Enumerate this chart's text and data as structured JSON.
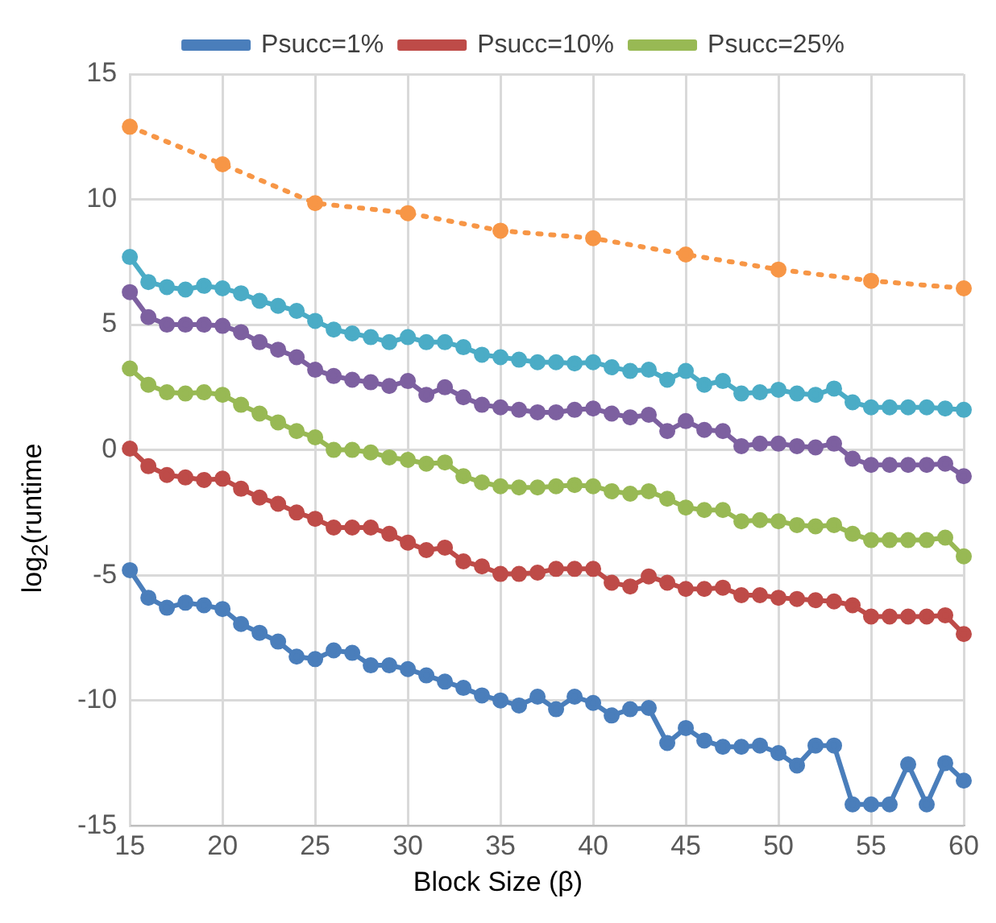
{
  "chart_data": {
    "type": "line",
    "xlabel": "Block Size (β)",
    "ylabel": "log$_{2}$(runtime",
    "x": [
      15,
      16,
      17,
      18,
      19,
      20,
      21,
      22,
      23,
      24,
      25,
      26,
      27,
      28,
      29,
      30,
      31,
      32,
      33,
      34,
      35,
      36,
      37,
      38,
      39,
      40,
      41,
      42,
      43,
      44,
      45,
      46,
      47,
      48,
      49,
      50,
      51,
      52,
      53,
      54,
      55,
      56,
      57,
      58,
      59,
      60
    ],
    "series": [
      {
        "name": "Psucc=1%",
        "color": "#4a7ebb",
        "values": [
          -4.8,
          -5.9,
          -6.3,
          -6.1,
          -6.2,
          -6.35,
          -6.95,
          -7.3,
          -7.65,
          -8.25,
          -8.35,
          -8.0,
          -8.1,
          -8.6,
          -8.6,
          -8.75,
          -9.0,
          -9.25,
          -9.5,
          -9.8,
          -10.0,
          -10.2,
          -9.85,
          -10.35,
          -9.85,
          -10.1,
          -10.6,
          -10.35,
          -10.3,
          -11.7,
          -11.1,
          -11.6,
          -11.85,
          -11.85,
          -11.8,
          -12.1,
          -12.6,
          -11.8,
          -11.8,
          -14.15,
          -14.15,
          -14.15,
          -12.55,
          -14.15,
          -12.5,
          -13.2
        ]
      },
      {
        "name": "Psucc=10%",
        "color": "#be4b48",
        "values": [
          0.05,
          -0.65,
          -1.0,
          -1.1,
          -1.2,
          -1.15,
          -1.55,
          -1.9,
          -2.15,
          -2.5,
          -2.75,
          -3.1,
          -3.1,
          -3.1,
          -3.35,
          -3.7,
          -4.0,
          -3.9,
          -4.45,
          -4.65,
          -4.95,
          -4.95,
          -4.9,
          -4.75,
          -4.75,
          -4.75,
          -5.3,
          -5.45,
          -5.05,
          -5.3,
          -5.55,
          -5.55,
          -5.5,
          -5.8,
          -5.8,
          -5.9,
          -5.95,
          -6.0,
          -6.05,
          -6.2,
          -6.65,
          -6.65,
          -6.65,
          -6.65,
          -6.6,
          -7.35
        ]
      },
      {
        "name": "Psucc=25%",
        "color": "#98b954",
        "values": [
          3.25,
          2.6,
          2.3,
          2.25,
          2.3,
          2.2,
          1.8,
          1.45,
          1.1,
          0.75,
          0.5,
          0.0,
          0.0,
          -0.1,
          -0.3,
          -0.4,
          -0.55,
          -0.5,
          -1.05,
          -1.3,
          -1.45,
          -1.5,
          -1.5,
          -1.45,
          -1.4,
          -1.45,
          -1.65,
          -1.75,
          -1.65,
          -1.95,
          -2.3,
          -2.4,
          -2.4,
          -2.85,
          -2.8,
          -2.85,
          -3.0,
          -3.05,
          -3.0,
          -3.35,
          -3.6,
          -3.6,
          -3.6,
          -3.6,
          -3.5,
          -4.25
        ]
      },
      {
        "color": "#7d60a0",
        "values": [
          6.3,
          5.3,
          5.0,
          5.0,
          5.0,
          4.95,
          4.7,
          4.3,
          4.0,
          3.7,
          3.2,
          2.95,
          2.8,
          2.7,
          2.55,
          2.75,
          2.2,
          2.5,
          2.1,
          1.8,
          1.7,
          1.6,
          1.5,
          1.5,
          1.6,
          1.65,
          1.45,
          1.3,
          1.4,
          0.75,
          1.15,
          0.8,
          0.75,
          0.15,
          0.25,
          0.25,
          0.15,
          0.1,
          0.25,
          -0.35,
          -0.6,
          -0.6,
          -0.6,
          -0.6,
          -0.55,
          -1.05
        ]
      },
      {
        "color": "#4bacc6",
        "values": [
          7.7,
          6.7,
          6.5,
          6.4,
          6.55,
          6.45,
          6.25,
          5.95,
          5.75,
          5.55,
          5.15,
          4.8,
          4.65,
          4.5,
          4.3,
          4.5,
          4.3,
          4.3,
          4.1,
          3.8,
          3.7,
          3.6,
          3.5,
          3.5,
          3.45,
          3.5,
          3.3,
          3.15,
          3.2,
          2.8,
          3.15,
          2.6,
          2.75,
          2.25,
          2.3,
          2.4,
          2.25,
          2.2,
          2.45,
          1.9,
          1.7,
          1.7,
          1.7,
          1.7,
          1.65,
          1.6
        ]
      },
      {
        "color": "#f79646",
        "line_style": "dotted",
        "x": [
          15,
          20,
          25,
          30,
          35,
          40,
          45,
          50,
          55,
          60
        ],
        "values": [
          12.9,
          11.4,
          9.85,
          9.45,
          8.75,
          8.45,
          7.8,
          7.2,
          6.75,
          6.45
        ]
      }
    ],
    "xlim": [
      15,
      60
    ],
    "xticks": [
      15,
      20,
      25,
      30,
      35,
      40,
      45,
      50,
      55,
      60
    ],
    "ylim": [
      -15,
      15
    ],
    "yticks": [
      -15,
      -10,
      -5,
      0,
      5,
      10,
      15
    ],
    "grid": true,
    "legend": "top",
    "marker": "circle",
    "line_style": "solid"
  }
}
